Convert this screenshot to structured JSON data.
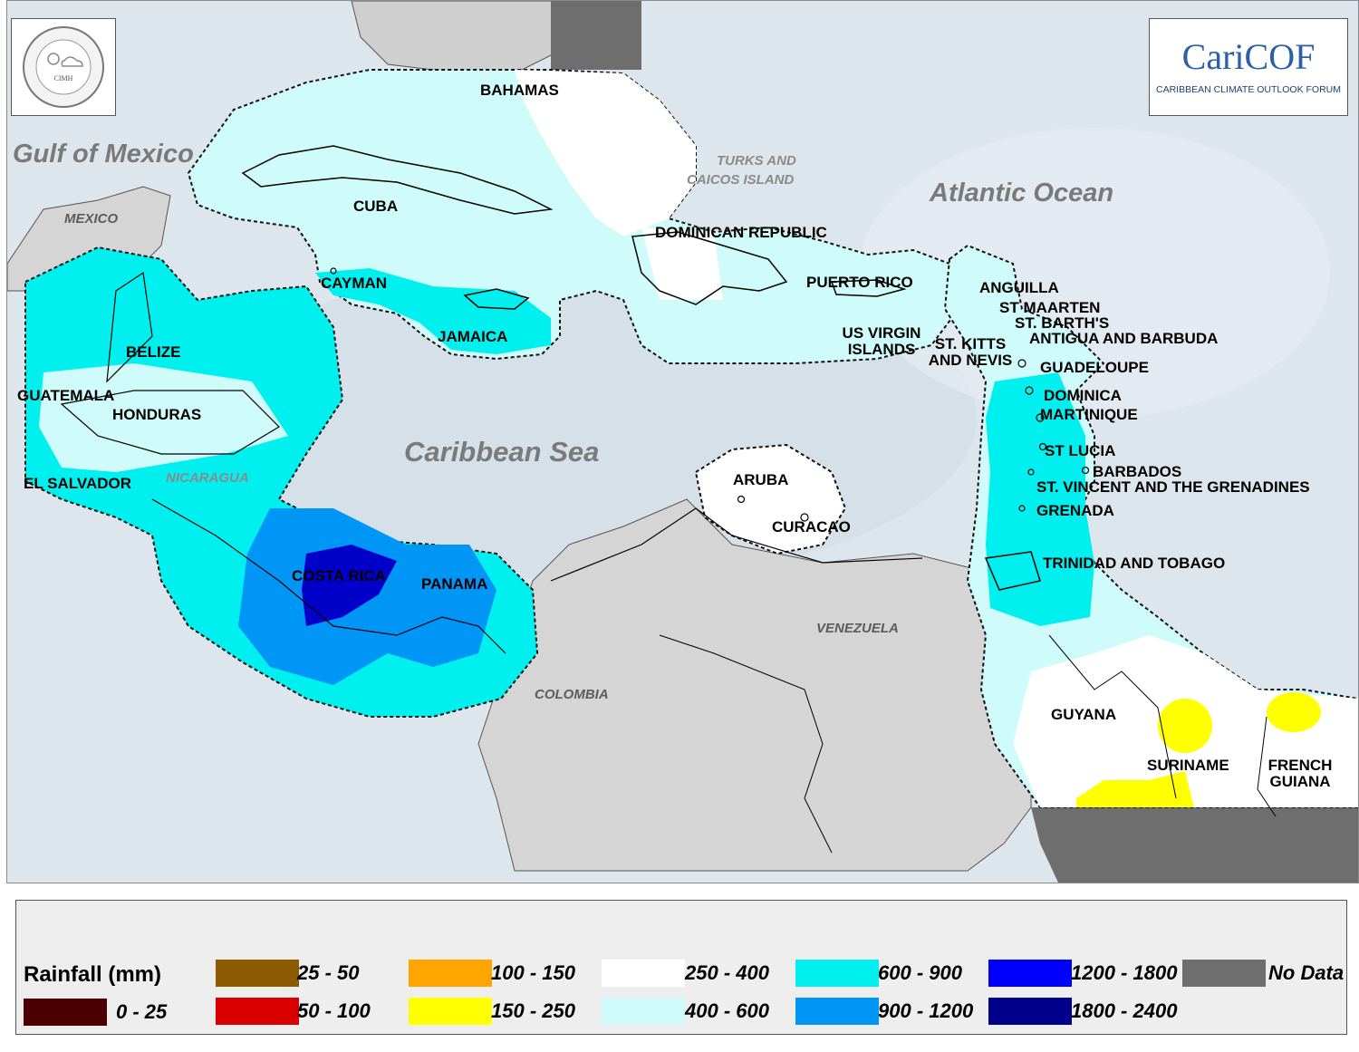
{
  "map": {
    "water_labels": {
      "gulf_of_mexico": "Gulf of Mexico",
      "atlantic_ocean": "Atlantic Ocean",
      "caribbean_sea": "Caribbean Sea"
    },
    "land_labels": {
      "mexico": "MEXICO",
      "colombia": "COLOMBIA",
      "venezuela": "VENEZUELA",
      "nicaragua": "NICARAGUA",
      "turks_caicos_1": "TURKS AND",
      "turks_caicos_2": "CAICOS ISLAND"
    },
    "country_labels": {
      "bahamas": "BAHAMAS",
      "cuba": "CUBA",
      "cayman": "CAYMAN",
      "jamaica": "JAMAICA",
      "dominican_republic": "DOMINICAN REPUBLIC",
      "puerto_rico": "PUERTO RICO",
      "us_virgin_islands_1": "US VIRGIN",
      "us_virgin_islands_2": "ISLANDS",
      "anguilla": "ANGUILLA",
      "st_maarten": "ST MAARTEN",
      "st_barths": "ST. BARTH'S",
      "antigua_barbuda": "ANTIGUA AND BARBUDA",
      "st_kitts_1": "ST. KITTS",
      "st_kitts_2": "AND NEVIS",
      "guadeloupe": "GUADELOUPE",
      "dominica": "DOMINICA",
      "martinique": "MARTINIQUE",
      "st_lucia": "ST LUCIA",
      "barbados": "BARBADOS",
      "st_vincent": "ST. VINCENT AND THE GRENADINES",
      "grenada": "GRENADA",
      "trinidad_tobago": "TRINIDAD AND TOBAGO",
      "aruba": "ARUBA",
      "curacao": "CURACAO",
      "belize": "BELIZE",
      "guatemala": "GUATEMALA",
      "honduras": "HONDURAS",
      "el_salvador": "EL SALVADOR",
      "costa_rica": "COSTA RICA",
      "panama": "PANAMA",
      "guyana": "GUYANA",
      "suriname": "SURINAME",
      "french_guiana_1": "FRENCH",
      "french_guiana_2": "GUIANA"
    }
  },
  "logos": {
    "caricof_name": "CariCOF",
    "caricof_subtitle": "CARIBBEAN CLIMATE OUTLOOK FORUM",
    "cimh_ring_text": "Caribbean Institute for Meteorology and Hydrology",
    "cimh_center_text": "CIMH"
  },
  "legend": {
    "title": "Rainfall (mm)",
    "items": [
      {
        "label": "0 - 25",
        "color": "#4a0000"
      },
      {
        "label": "25 - 50",
        "color": "#8c5a00"
      },
      {
        "label": "50 - 100",
        "color": "#d80000"
      },
      {
        "label": "100 - 150",
        "color": "#ffa500"
      },
      {
        "label": "150 - 250",
        "color": "#ffff00"
      },
      {
        "label": "250 - 400",
        "color": "#ffffff"
      },
      {
        "label": "400 - 600",
        "color": "#cffbfb"
      },
      {
        "label": "600 - 900",
        "color": "#00f0f0"
      },
      {
        "label": "900 - 1200",
        "color": "#0096f5"
      },
      {
        "label": "1200 - 1800",
        "color": "#0000ff"
      },
      {
        "label": "1800 - 2400",
        "color": "#00008a"
      },
      {
        "label": "No Data",
        "color": "#6e6e6e"
      }
    ]
  }
}
